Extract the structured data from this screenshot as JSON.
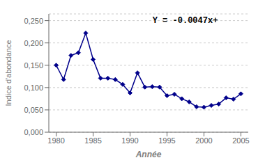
{
  "chart_data": {
    "type": "line",
    "x": [
      1980,
      1981,
      1982,
      1983,
      1984,
      1985,
      1986,
      1987,
      1988,
      1989,
      1990,
      1991,
      1992,
      1993,
      1994,
      1995,
      1996,
      1997,
      1998,
      1999,
      2000,
      2001,
      2002,
      2003,
      2004,
      2005
    ],
    "values": [
      0.15,
      0.118,
      0.172,
      0.178,
      0.222,
      0.163,
      0.121,
      0.121,
      0.118,
      0.107,
      0.088,
      0.133,
      0.101,
      0.102,
      0.101,
      0.082,
      0.085,
      0.075,
      0.068,
      0.057,
      0.056,
      0.06,
      0.063,
      0.077,
      0.074,
      0.086
    ],
    "xlabel": "Année",
    "ylabel": "Indice d'abondance",
    "annotation": "Y = -0.0047x+",
    "color": "#00008B",
    "marker": "diamond",
    "xlim": [
      1979,
      2006
    ],
    "ylim": [
      0.0,
      0.265
    ],
    "xticks": [
      1980,
      1985,
      1990,
      1995,
      2000,
      2005
    ],
    "yticks": [
      {
        "value": 0.0,
        "label": "0,000"
      },
      {
        "value": 0.05,
        "label": "0,050"
      },
      {
        "value": 0.1,
        "label": "0,100"
      },
      {
        "value": 0.15,
        "label": "0,150"
      },
      {
        "value": 0.2,
        "label": "0,200"
      },
      {
        "value": 0.25,
        "label": "0,250"
      }
    ],
    "grid": true
  }
}
